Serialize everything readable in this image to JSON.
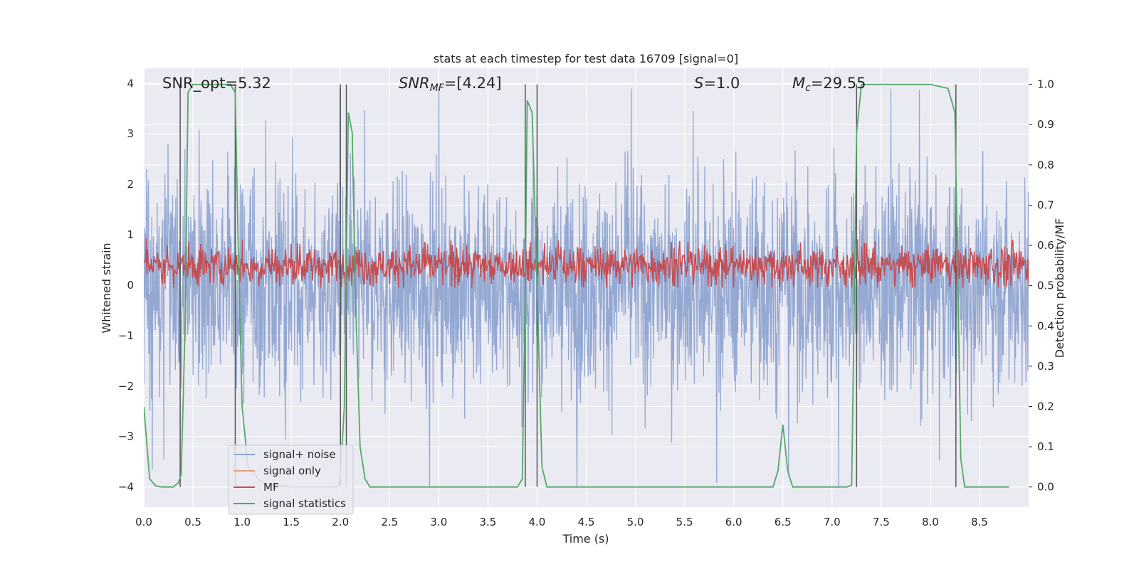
{
  "chart_data": {
    "type": "line",
    "title": "stats at each timestep for test data 16709 [signal=0]",
    "xlabel": "Time (s)",
    "ylabel": "Whitened strain",
    "ylabel_right": "Detection probability/MF",
    "xlim": [
      0.0,
      9.0
    ],
    "ylim": [
      -4.4,
      4.3
    ],
    "ylim_right": [
      -0.05,
      1.04
    ],
    "x_ticks": [
      "0.0",
      "0.5",
      "1.0",
      "1.5",
      "2.0",
      "2.5",
      "3.0",
      "3.5",
      "4.0",
      "4.5",
      "5.0",
      "5.5",
      "6.0",
      "6.5",
      "7.0",
      "7.5",
      "8.0",
      "8.5"
    ],
    "y_ticks": [
      "−4",
      "−3",
      "−2",
      "−1",
      "0",
      "1",
      "2",
      "3",
      "4"
    ],
    "y_ticks_right": [
      "0.0",
      "0.1",
      "0.2",
      "0.3",
      "0.4",
      "0.5",
      "0.6",
      "0.7",
      "0.8",
      "0.9",
      "1.0"
    ],
    "grid": true,
    "legend_position": "lower-left",
    "annotations": {
      "snr_opt": "SNR_opt=5.32",
      "snr_mf_main": "SNR",
      "snr_mf_sub": "MF",
      "snr_mf_rest": "=[4.24]",
      "s_italic": "S",
      "s_rest": "=1.0",
      "mc_main": "M",
      "mc_sub": "c",
      "mc_rest": "=29.55"
    },
    "vertical_markers": [
      0.37,
      0.93,
      2.0,
      2.06,
      3.88,
      4.0,
      7.25,
      8.26
    ],
    "series": [
      {
        "name": "signal+ noise",
        "color": "#8fa4d0",
        "axis": "left",
        "description_kind": "noise",
        "amplitude_band": [
          -2.3,
          2.3
        ],
        "peak_range": [
          -4.0,
          3.9
        ]
      },
      {
        "name": "signal only",
        "color": "#e8a07d",
        "axis": "left",
        "x": [],
        "y": []
      },
      {
        "name": "MF",
        "color": "#c44e52",
        "axis": "right",
        "band": [
          0.5,
          0.6
        ],
        "peak_max": 0.64
      },
      {
        "name": "signal statistics",
        "color": "#55a868",
        "axis": "right",
        "x": [
          0.0,
          0.06,
          0.12,
          0.18,
          0.24,
          0.3,
          0.35,
          0.38,
          0.42,
          0.45,
          0.5,
          0.6,
          0.7,
          0.8,
          0.88,
          0.93,
          0.96,
          1.0,
          1.06,
          1.2,
          1.5,
          1.8,
          1.95,
          1.98,
          2.0,
          2.04,
          2.08,
          2.12,
          2.15,
          2.2,
          2.25,
          2.3,
          2.4,
          2.6,
          3.0,
          3.4,
          3.8,
          3.85,
          3.88,
          3.9,
          3.95,
          4.0,
          4.05,
          4.1,
          4.2,
          4.5,
          5.0,
          5.5,
          6.0,
          6.2,
          6.4,
          6.45,
          6.5,
          6.55,
          6.6,
          6.65,
          6.8,
          7.0,
          7.15,
          7.2,
          7.25,
          7.3,
          7.4,
          7.6,
          8.0,
          8.18,
          8.25,
          8.28,
          8.31,
          8.35,
          8.45,
          8.8
        ],
        "y": [
          0.2,
          0.02,
          0.003,
          0.0,
          0.0,
          0.0,
          0.01,
          0.03,
          0.4,
          0.98,
          1.0,
          1.0,
          1.0,
          1.0,
          1.0,
          0.98,
          0.6,
          0.2,
          0.05,
          0.01,
          0.0,
          0.0,
          0.0,
          0.005,
          0.03,
          0.2,
          0.93,
          0.88,
          0.5,
          0.1,
          0.02,
          0.0,
          0.0,
          0.0,
          0.0,
          0.0,
          0.0,
          0.02,
          0.5,
          0.96,
          0.93,
          0.5,
          0.05,
          0.0,
          0.0,
          0.0,
          0.0,
          0.0,
          0.0,
          0.0,
          0.0,
          0.04,
          0.155,
          0.04,
          0.0,
          0.0,
          0.0,
          0.0,
          0.0,
          0.005,
          0.88,
          1.0,
          1.0,
          1.0,
          1.0,
          0.99,
          0.93,
          0.5,
          0.07,
          0.0,
          0.0,
          0.0
        ]
      }
    ]
  },
  "legend": {
    "items": [
      {
        "label": "signal+ noise",
        "color": "#8fa4d0"
      },
      {
        "label": "signal only",
        "color": "#e8a07d"
      },
      {
        "label": "MF",
        "color": "#c44e52"
      },
      {
        "label": "signal statistics",
        "color": "#55a868"
      }
    ]
  }
}
